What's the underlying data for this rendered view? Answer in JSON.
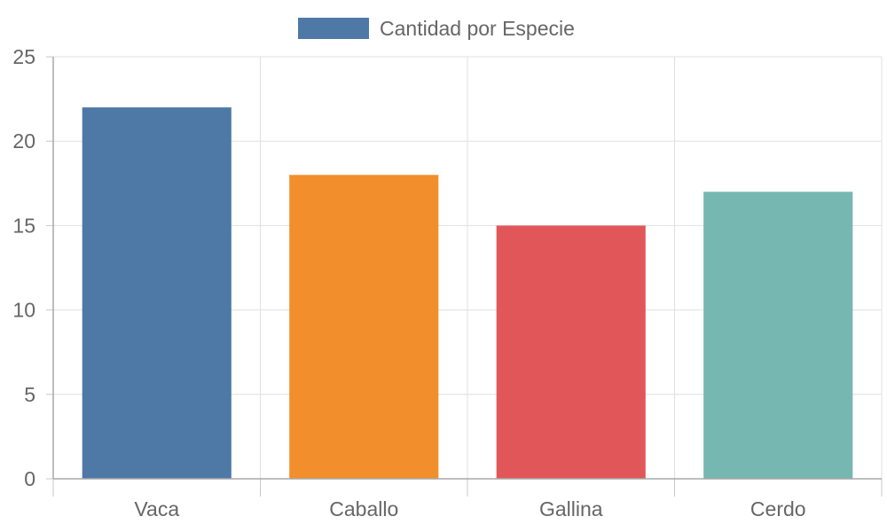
{
  "chart_data": {
    "type": "bar",
    "categories": [
      "Vaca",
      "Caballo",
      "Gallina",
      "Cerdo"
    ],
    "series": [
      {
        "name": "Cantidad por Especie",
        "values": [
          22,
          18,
          15,
          17
        ],
        "colors": [
          "#4e79a7",
          "#f28e2b",
          "#e15759",
          "#76b7b2"
        ]
      }
    ],
    "legend_swatch_color": "#4e79a7",
    "ylim": [
      0,
      25
    ],
    "yticks": [
      0,
      5,
      10,
      15,
      20,
      25
    ],
    "grid": true,
    "legend_position": "top"
  }
}
